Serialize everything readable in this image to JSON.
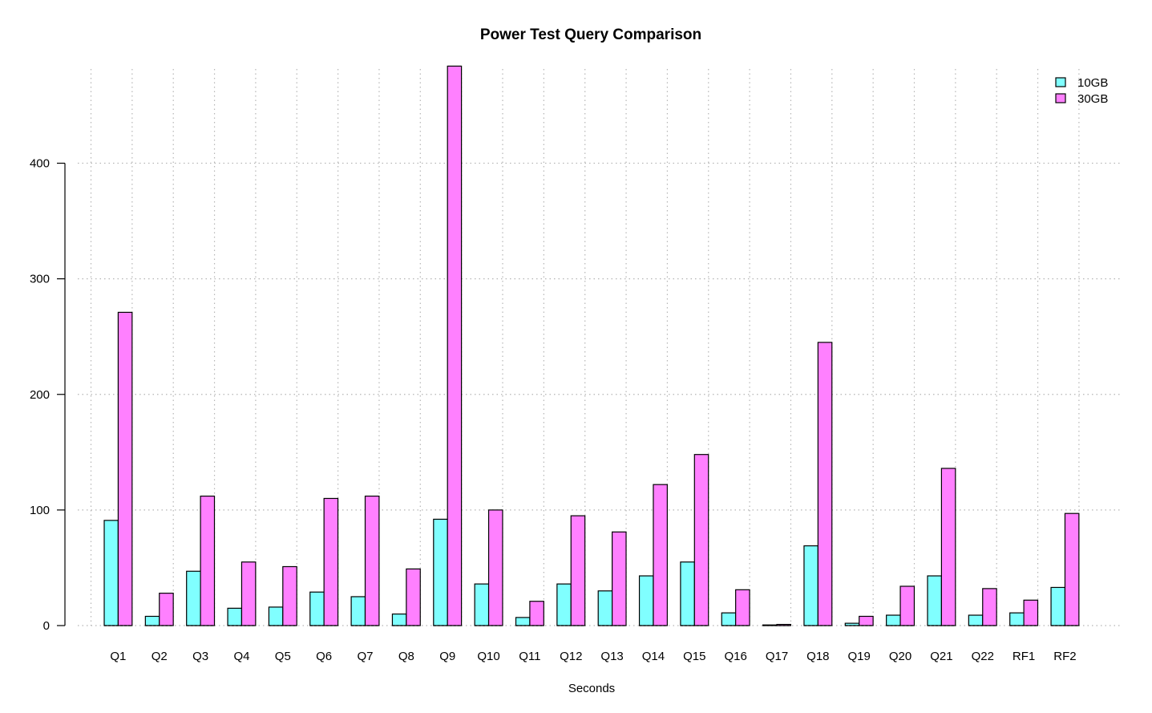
{
  "chart_data": {
    "type": "bar",
    "title": "Power Test Query Comparison",
    "xlabel": "Seconds",
    "ylabel": "",
    "ylim": [
      0,
      485
    ],
    "yticks": [
      0,
      100,
      200,
      300,
      400
    ],
    "grid": true,
    "legend_position": "top-right",
    "categories": [
      "Q1",
      "Q2",
      "Q3",
      "Q4",
      "Q5",
      "Q6",
      "Q7",
      "Q8",
      "Q9",
      "Q10",
      "Q11",
      "Q12",
      "Q13",
      "Q14",
      "Q15",
      "Q16",
      "Q17",
      "Q18",
      "Q19",
      "Q20",
      "Q21",
      "Q22",
      "RF1",
      "RF2"
    ],
    "series": [
      {
        "name": "10GB",
        "color": "#80FFFF",
        "values": [
          91,
          8,
          47,
          15,
          16,
          29,
          25,
          10,
          92,
          36,
          7,
          36,
          30,
          43,
          55,
          11,
          0.5,
          69,
          2,
          9,
          43,
          9,
          11,
          33
        ]
      },
      {
        "name": "30GB",
        "color": "#FF80FF",
        "values": [
          271,
          28,
          112,
          55,
          51,
          110,
          112,
          49,
          484,
          100,
          21,
          95,
          81,
          122,
          148,
          31,
          1,
          245,
          8,
          34,
          136,
          32,
          22,
          97
        ]
      }
    ]
  }
}
